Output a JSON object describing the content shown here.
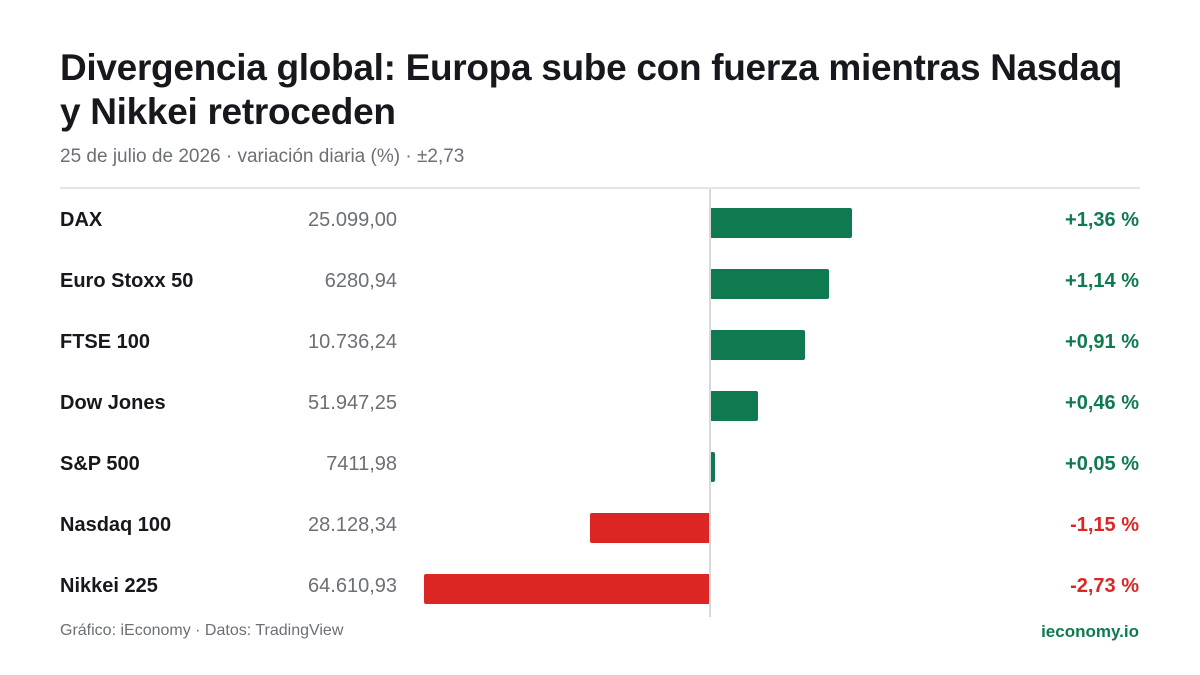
{
  "header": {
    "title": "Divergencia global: Europa sube con fuerza mientras Nasdaq y Nikkei retroceden",
    "subtitle": "25 de julio de 2026 · variación diaria (%) · ±2,73"
  },
  "footer": {
    "credit": "Gráfico: iEconomy · Datos: TradingView",
    "brand": "ieconomy.io"
  },
  "colors": {
    "positive": "#0f7a4f",
    "negative": "#dc2626"
  },
  "chart_data": {
    "type": "bar",
    "orientation": "horizontal",
    "title": "Divergencia global: Europa sube con fuerza mientras Nasdaq y Nikkei retroceden",
    "subtitle": "25 de julio de 2026 · variación diaria (%) · ±2,73",
    "xlim": [
      -2.73,
      2.73
    ],
    "grid": false,
    "categories": [
      "DAX",
      "Euro Stoxx 50",
      "FTSE 100",
      "Dow Jones",
      "S&P 500",
      "Nasdaq 100",
      "Nikkei 225"
    ],
    "values": [
      1.36,
      1.14,
      0.91,
      0.46,
      0.05,
      -1.15,
      -2.73
    ],
    "rows": [
      {
        "name": "DAX",
        "level": "25.099,00",
        "change": 1.36,
        "change_label": "+1,36 %"
      },
      {
        "name": "Euro Stoxx 50",
        "level": "6280,94",
        "change": 1.14,
        "change_label": "+1,14 %"
      },
      {
        "name": "FTSE 100",
        "level": "10.736,24",
        "change": 0.91,
        "change_label": "+0,91 %"
      },
      {
        "name": "Dow Jones",
        "level": "51.947,25",
        "change": 0.46,
        "change_label": "+0,46 %"
      },
      {
        "name": "S&P 500",
        "level": "7411,98",
        "change": 0.05,
        "change_label": "+0,05 %"
      },
      {
        "name": "Nasdaq 100",
        "level": "28.128,34",
        "change": -1.15,
        "change_label": "-1,15 %"
      },
      {
        "name": "Nikkei 225",
        "level": "64.610,93",
        "change": -2.73,
        "change_label": "-2,73 %"
      }
    ]
  }
}
